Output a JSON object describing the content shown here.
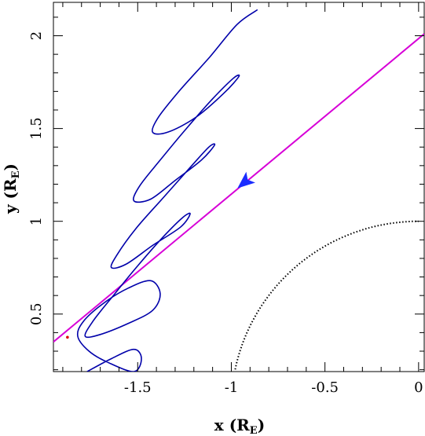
{
  "chart_data": {
    "type": "line",
    "title": "",
    "xlabel": {
      "main": "x",
      "unit": "R",
      "unit_sub": "E"
    },
    "ylabel": {
      "main": "y",
      "unit": "R",
      "unit_sub": "E"
    },
    "xlim": [
      -1.95,
      0.03
    ],
    "ylim": [
      0.19,
      2.18
    ],
    "x_ticks": [
      {
        "value": -1.5,
        "label": "-1.5"
      },
      {
        "value": -1,
        "label": "-1"
      },
      {
        "value": -0.5,
        "label": "-0.5"
      },
      {
        "value": 0,
        "label": "0"
      }
    ],
    "y_ticks": [
      {
        "value": 0.5,
        "label": "0.5"
      },
      {
        "value": 1,
        "label": "1"
      },
      {
        "value": 1.5,
        "label": "1.5"
      },
      {
        "value": 2,
        "label": "2"
      }
    ],
    "grid": false,
    "legend": "none",
    "colors": {
      "orbit": "#0000aa",
      "field_line": "#d700d7",
      "arrow": "#1a2cff",
      "earth_boundary": "#000000",
      "marker": "#dd0000"
    },
    "series": [
      {
        "kind": "field-line",
        "x": [
          -1.95,
          0.03
        ],
        "y": [
          0.35,
          2.01
        ]
      },
      {
        "kind": "spiral-orbit",
        "x": [
          -1.77,
          -1.64,
          -1.52,
          -1.48,
          -1.52,
          -1.66,
          -1.76,
          -1.82,
          -1.79,
          -1.68,
          -1.55,
          -1.43,
          -1.38,
          -1.42,
          -1.55,
          -1.7,
          -1.78,
          -1.74,
          -1.63,
          -1.5,
          -1.36,
          -1.26,
          -1.22,
          -1.27,
          -1.42,
          -1.56,
          -1.64,
          -1.61,
          -1.51,
          -1.37,
          -1.22,
          -1.12,
          -1.09,
          -1.16,
          -1.3,
          -1.43,
          -1.52,
          -1.49,
          -1.38,
          -1.24,
          -1.1,
          -0.99,
          -0.96,
          -1.04,
          -1.19,
          -1.34,
          -1.42,
          -1.39,
          -1.28,
          -1.12,
          -0.97,
          -0.86
        ],
        "y": [
          0.19,
          0.26,
          0.31,
          0.26,
          0.19,
          0.24,
          0.3,
          0.38,
          0.46,
          0.56,
          0.64,
          0.68,
          0.61,
          0.52,
          0.45,
          0.39,
          0.38,
          0.46,
          0.6,
          0.76,
          0.92,
          1.02,
          1.04,
          0.97,
          0.87,
          0.77,
          0.75,
          0.82,
          0.96,
          1.12,
          1.29,
          1.4,
          1.41,
          1.33,
          1.22,
          1.12,
          1.11,
          1.19,
          1.33,
          1.5,
          1.66,
          1.77,
          1.78,
          1.69,
          1.56,
          1.48,
          1.48,
          1.56,
          1.7,
          1.88,
          2.06,
          2.14
        ]
      },
      {
        "kind": "earth-boundary",
        "center": [
          0,
          0
        ],
        "radius": 1
      }
    ],
    "annotations": [
      {
        "type": "arrow",
        "x": -0.935,
        "y": 1.205
      },
      {
        "type": "marker",
        "x": -1.875,
        "y": 0.375
      }
    ]
  }
}
